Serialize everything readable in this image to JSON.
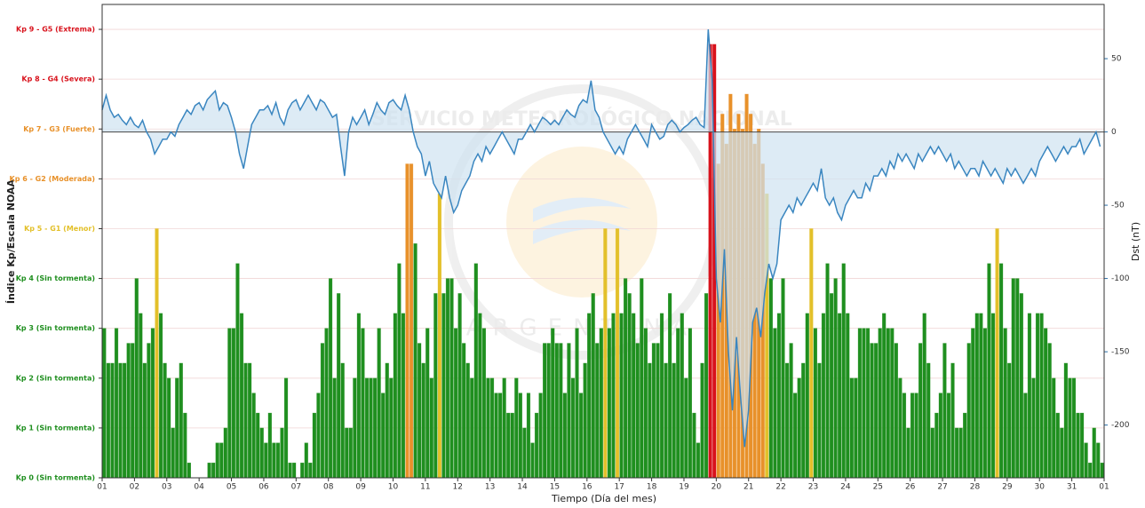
{
  "chart_data": {
    "type": "bar",
    "x_label": "Tiempo (Día del mes)",
    "y_label": "Índice Kp/Escala NOAA",
    "y2_label": "Dst (nT)",
    "watermark": [
      "SERVICIO METEOROLÓGICO NACIONAL",
      "ARGENTINA"
    ],
    "grid": true,
    "xlim": [
      1,
      32
    ],
    "xticks": [
      {
        "value": 1,
        "label": "01"
      },
      {
        "value": 2,
        "label": "02"
      },
      {
        "value": 3,
        "label": "03"
      },
      {
        "value": 4,
        "label": "04"
      },
      {
        "value": 5,
        "label": "05"
      },
      {
        "value": 6,
        "label": "06"
      },
      {
        "value": 7,
        "label": "07"
      },
      {
        "value": 8,
        "label": "08"
      },
      {
        "value": 9,
        "label": "09"
      },
      {
        "value": 10,
        "label": "10"
      },
      {
        "value": 11,
        "label": "11"
      },
      {
        "value": 12,
        "label": "12"
      },
      {
        "value": 13,
        "label": "13"
      },
      {
        "value": 14,
        "label": "14"
      },
      {
        "value": 15,
        "label": "15"
      },
      {
        "value": 16,
        "label": "16"
      },
      {
        "value": 17,
        "label": "17"
      },
      {
        "value": 18,
        "label": "18"
      },
      {
        "value": 19,
        "label": "19"
      },
      {
        "value": 20,
        "label": "20"
      },
      {
        "value": 21,
        "label": "21"
      },
      {
        "value": 22,
        "label": "22"
      },
      {
        "value": 23,
        "label": "23"
      },
      {
        "value": 24,
        "label": "24"
      },
      {
        "value": 25,
        "label": "25"
      },
      {
        "value": 26,
        "label": "26"
      },
      {
        "value": 27,
        "label": "27"
      },
      {
        "value": 28,
        "label": "28"
      },
      {
        "value": 29,
        "label": "29"
      },
      {
        "value": 30,
        "label": "30"
      },
      {
        "value": 31,
        "label": "31"
      },
      {
        "value": 32,
        "label": "01"
      }
    ],
    "ylim": [
      0,
      9.5
    ],
    "yticks": [
      {
        "value": 0,
        "label": "Kp 0 (Sin tormenta)"
      },
      {
        "value": 1,
        "label": "Kp 1 (Sin tormenta)"
      },
      {
        "value": 2,
        "label": "Kp 2 (Sin tormenta)"
      },
      {
        "value": 3,
        "label": "Kp 3 (Sin tormenta)"
      },
      {
        "value": 4,
        "label": "Kp 4 (Sin tormenta)"
      },
      {
        "value": 5,
        "label": "Kp 5 - G1 (Menor)"
      },
      {
        "value": 6,
        "label": "Kp 6 - G2 (Moderada)"
      },
      {
        "value": 7,
        "label": "Kp 7 - G3 (Fuerte)"
      },
      {
        "value": 8,
        "label": "Kp 8 - G4 (Severa)"
      },
      {
        "value": 9,
        "label": "Kp 9 - G5 (Extrema)"
      }
    ],
    "y2lim": [
      -236,
      87
    ],
    "y2ticks": [
      50,
      0,
      -50,
      -100,
      -150,
      -200
    ],
    "level_colors": [
      {
        "from": 0,
        "color": "#1f8f1f"
      },
      {
        "from": 5,
        "color": "#e3c02a"
      },
      {
        "from": 6,
        "color": "#e8912a"
      },
      {
        "from": 8,
        "color": "#d8121c"
      }
    ],
    "x": [
      1,
      1.125,
      1.25,
      1.375,
      1.5,
      1.625,
      1.75,
      1.875,
      2,
      2.125,
      2.25,
      2.375,
      2.5,
      2.625,
      2.75,
      2.875,
      3,
      3.125,
      3.25,
      3.375,
      3.5,
      3.625,
      3.75,
      3.875,
      4,
      4.125,
      4.25,
      4.375,
      4.5,
      4.625,
      4.75,
      4.875,
      5,
      5.125,
      5.25,
      5.375,
      5.5,
      5.625,
      5.75,
      5.875,
      6,
      6.125,
      6.25,
      6.375,
      6.5,
      6.625,
      6.75,
      6.875,
      7,
      7.125,
      7.25,
      7.375,
      7.5,
      7.625,
      7.75,
      7.875,
      8,
      8.125,
      8.25,
      8.375,
      8.5,
      8.625,
      8.75,
      8.875,
      9,
      9.125,
      9.25,
      9.375,
      9.5,
      9.625,
      9.75,
      9.875,
      10,
      10.125,
      10.25,
      10.375,
      10.5,
      10.625,
      10.75,
      10.875,
      11,
      11.125,
      11.25,
      11.375,
      11.5,
      11.625,
      11.75,
      11.875,
      12,
      12.125,
      12.25,
      12.375,
      12.5,
      12.625,
      12.75,
      12.875,
      13,
      13.125,
      13.25,
      13.375,
      13.5,
      13.625,
      13.75,
      13.875,
      14,
      14.125,
      14.25,
      14.375,
      14.5,
      14.625,
      14.75,
      14.875,
      15,
      15.125,
      15.25,
      15.375,
      15.5,
      15.625,
      15.75,
      15.875,
      16,
      16.125,
      16.25,
      16.375,
      16.5,
      16.625,
      16.75,
      16.875,
      17,
      17.125,
      17.25,
      17.375,
      17.5,
      17.625,
      17.75,
      17.875,
      18,
      18.125,
      18.25,
      18.375,
      18.5,
      18.625,
      18.75,
      18.875,
      19,
      19.125,
      19.25,
      19.375,
      19.5,
      19.625,
      19.75,
      19.875,
      20,
      20.125,
      20.25,
      20.375,
      20.5,
      20.625,
      20.75,
      20.875,
      21,
      21.125,
      21.25,
      21.375,
      21.5,
      21.625,
      21.75,
      21.875,
      22,
      22.125,
      22.25,
      22.375,
      22.5,
      22.625,
      22.75,
      22.875,
      23,
      23.125,
      23.25,
      23.375,
      23.5,
      23.625,
      23.75,
      23.875,
      24,
      24.125,
      24.25,
      24.375,
      24.5,
      24.625,
      24.75,
      24.875,
      25,
      25.125,
      25.25,
      25.375,
      25.5,
      25.625,
      25.75,
      25.875,
      26,
      26.125,
      26.25,
      26.375,
      26.5,
      26.625,
      26.75,
      26.875,
      27,
      27.125,
      27.25,
      27.375,
      27.5,
      27.625,
      27.75,
      27.875,
      28,
      28.125,
      28.25,
      28.375,
      28.5,
      28.625,
      28.75,
      28.875,
      29,
      29.125,
      29.25,
      29.375,
      29.5,
      29.625,
      29.75,
      29.875,
      30,
      30.125,
      30.25,
      30.375,
      30.5,
      30.625,
      30.75,
      30.875,
      31,
      31.125,
      31.25,
      31.375,
      31.5,
      31.625,
      31.75,
      31.875
    ],
    "series": [
      {
        "type": "bar",
        "values": [
          3,
          2.3,
          2.3,
          3,
          2.3,
          2.3,
          2.7,
          2.7,
          4,
          3.3,
          2.3,
          2.7,
          3,
          5,
          3.3,
          2.3,
          2,
          1,
          2,
          2.3,
          1.3,
          0.3,
          0,
          0,
          0,
          0,
          0.3,
          0.3,
          0.7,
          0.7,
          1,
          3,
          3,
          4.3,
          3.3,
          2.3,
          2.3,
          1.7,
          1.3,
          1,
          0.7,
          1.3,
          0.7,
          0.7,
          1,
          2,
          0.3,
          0.3,
          0,
          0.3,
          0.7,
          0.3,
          1.3,
          1.7,
          2.7,
          3,
          4,
          2,
          3.7,
          2.3,
          1,
          1,
          2,
          3.3,
          3,
          2,
          2,
          2,
          3,
          1.7,
          2.3,
          2,
          3.3,
          4.3,
          3.3,
          6.3,
          6.3,
          4.7,
          2.7,
          2.3,
          3,
          2,
          3.7,
          5.7,
          3.7,
          4,
          4,
          3,
          3.7,
          2.7,
          2.3,
          2,
          4.3,
          3.3,
          3,
          2,
          2,
          1.7,
          1.7,
          2,
          1.3,
          1.3,
          2,
          1.7,
          1,
          1.7,
          0.7,
          1.3,
          1.7,
          2.7,
          2.7,
          3,
          2.7,
          2.7,
          1.7,
          2.7,
          2,
          3,
          1.7,
          2.3,
          3.3,
          3.7,
          2.7,
          3,
          5,
          3,
          3.3,
          5,
          3.3,
          4,
          3.7,
          3.3,
          2.7,
          4,
          3,
          2.3,
          2.7,
          2.7,
          3.3,
          2.3,
          3.7,
          2.3,
          3,
          3.3,
          2,
          3,
          1.3,
          0.7,
          2.3,
          3.7,
          8.7,
          8.7,
          6.3,
          7.3,
          6.7,
          7.7,
          7,
          7.3,
          7,
          7.7,
          7.3,
          6.7,
          7,
          6.3,
          5.7,
          4,
          3,
          3.3,
          4,
          2.3,
          2.7,
          1.7,
          2,
          2.3,
          3.3,
          5,
          3,
          2.3,
          3.3,
          4.3,
          3.7,
          4,
          3.3,
          4.3,
          3.3,
          2,
          2,
          3,
          3,
          3,
          2.7,
          2.7,
          3,
          3.3,
          3,
          3,
          2.7,
          2,
          1.7,
          1,
          1.7,
          1.7,
          2.7,
          3.3,
          2.3,
          1,
          1.3,
          1.7,
          2.7,
          1.7,
          2.3,
          1,
          1,
          1.3,
          2.7,
          3,
          3.3,
          3.3,
          3,
          4.3,
          3.3,
          5,
          4.3,
          3,
          2.3,
          4,
          4,
          3.7,
          1.7,
          3.3,
          2,
          3.3,
          3.3,
          3,
          2.7,
          2,
          1.3,
          1,
          2.3,
          2,
          2,
          1.3,
          1.3,
          0.7,
          0.3,
          1,
          0.7,
          0.3
        ]
      },
      {
        "type": "line",
        "axis": "y2",
        "color": "#3a86c0",
        "fill_color": "#cfe2f1",
        "values": [
          15,
          25,
          15,
          10,
          12,
          8,
          5,
          10,
          5,
          3,
          8,
          0,
          -5,
          -15,
          -10,
          -5,
          -5,
          0,
          -3,
          5,
          10,
          15,
          12,
          18,
          20,
          15,
          22,
          25,
          28,
          15,
          20,
          18,
          10,
          0,
          -15,
          -25,
          -10,
          5,
          10,
          15,
          15,
          18,
          12,
          20,
          10,
          5,
          15,
          20,
          22,
          15,
          20,
          25,
          20,
          15,
          22,
          20,
          15,
          10,
          12,
          -10,
          -30,
          0,
          10,
          5,
          10,
          15,
          5,
          12,
          20,
          15,
          12,
          20,
          22,
          18,
          15,
          25,
          15,
          0,
          -10,
          -15,
          -30,
          -20,
          -35,
          -40,
          -45,
          -30,
          -45,
          -55,
          -50,
          -40,
          -35,
          -30,
          -20,
          -15,
          -20,
          -10,
          -15,
          -10,
          -5,
          0,
          -5,
          -10,
          -15,
          -5,
          -5,
          0,
          5,
          0,
          5,
          10,
          8,
          5,
          8,
          5,
          10,
          15,
          12,
          10,
          18,
          22,
          20,
          35,
          15,
          10,
          0,
          -5,
          -10,
          -15,
          -10,
          -15,
          -5,
          0,
          5,
          0,
          -5,
          -10,
          5,
          0,
          -5,
          -3,
          5,
          8,
          5,
          0,
          3,
          5,
          8,
          10,
          5,
          3,
          70,
          35,
          -100,
          -130,
          -80,
          -150,
          -190,
          -140,
          -180,
          -215,
          -190,
          -130,
          -120,
          -140,
          -110,
          -90,
          -100,
          -90,
          -60,
          -55,
          -50,
          -55,
          -45,
          -50,
          -45,
          -40,
          -35,
          -40,
          -25,
          -45,
          -50,
          -45,
          -55,
          -60,
          -50,
          -45,
          -40,
          -45,
          -45,
          -35,
          -40,
          -30,
          -30,
          -25,
          -30,
          -20,
          -25,
          -15,
          -20,
          -15,
          -20,
          -25,
          -15,
          -20,
          -15,
          -10,
          -15,
          -10,
          -15,
          -20,
          -15,
          -25,
          -20,
          -25,
          -30,
          -25,
          -25,
          -30,
          -20,
          -25,
          -30,
          -25,
          -30,
          -35,
          -25,
          -30,
          -25,
          -30,
          -35,
          -30,
          -25,
          -30,
          -20,
          -15,
          -10,
          -15,
          -20,
          -15,
          -10,
          -15,
          -10,
          -10,
          -5,
          -15,
          -10,
          -5,
          0,
          -10
        ]
      }
    ]
  }
}
